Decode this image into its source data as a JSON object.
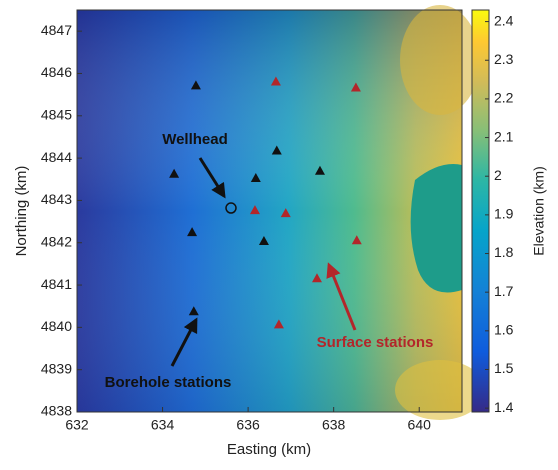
{
  "chart_data": {
    "type": "scatter",
    "x_label": "Easting (km)",
    "y_label": "Northing (km)",
    "colorbar_label": "Elevation (km)",
    "xlim": [
      632,
      641
    ],
    "xticks": [
      632,
      634,
      636,
      638,
      640
    ],
    "ylim": [
      4838,
      4847.5
    ],
    "yticks": [
      4838,
      4839,
      4840,
      4841,
      4842,
      4843,
      4844,
      4845,
      4846,
      4847
    ],
    "colorbar_lim": [
      1.39,
      2.43
    ],
    "colorbar_ticks": [
      1.4,
      1.5,
      1.6,
      1.7,
      1.8,
      1.9,
      2,
      2.1,
      2.2,
      2.3,
      2.4
    ],
    "series": [
      {
        "name": "Borehole stations",
        "color": "#111111",
        "marker": "triangle",
        "x": [
          634.78,
          636.67,
          634.27,
          636.18,
          637.68,
          634.69,
          636.37,
          634.73
        ],
        "y": [
          4845.72,
          4844.18,
          4843.63,
          4843.53,
          4843.7,
          4842.25,
          4842.04,
          4840.38
        ]
      },
      {
        "name": "Surface stations",
        "color": "#b3262a",
        "marker": "triangle",
        "x": [
          636.65,
          638.52,
          636.16,
          636.88,
          638.54,
          637.61,
          636.72
        ],
        "y": [
          4845.81,
          4845.67,
          4842.77,
          4842.7,
          4842.06,
          4841.16,
          4840.07
        ]
      },
      {
        "name": "Wellhead",
        "color": "#111111",
        "marker": "circle",
        "x": [
          635.6
        ],
        "y": [
          4842.82
        ]
      }
    ]
  }
}
